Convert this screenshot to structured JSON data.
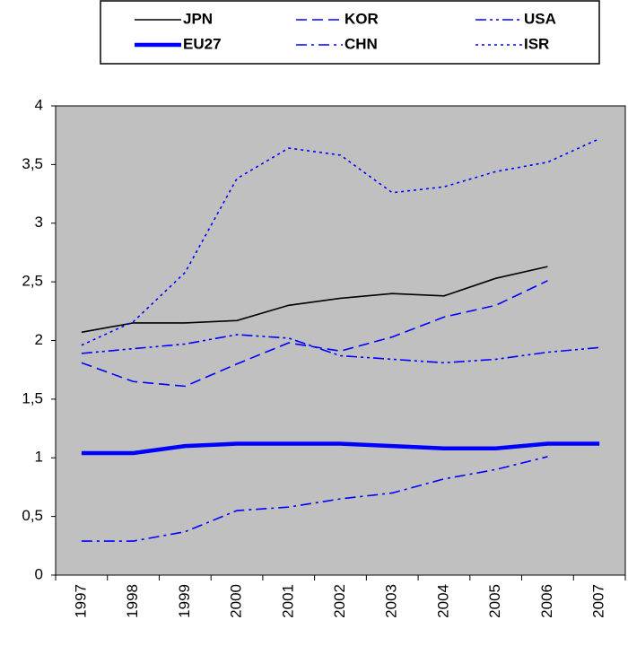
{
  "chart_data": {
    "type": "line",
    "categories": [
      "1997",
      "1998",
      "1999",
      "2000",
      "2001",
      "2002",
      "2003",
      "2004",
      "2005",
      "2006",
      "2007"
    ],
    "series": [
      {
        "name": "JPN",
        "color": "#000000",
        "dash": "solid",
        "thick": false,
        "values": [
          2.07,
          2.15,
          2.15,
          2.17,
          2.3,
          2.36,
          2.4,
          2.38,
          2.53,
          2.63,
          null
        ]
      },
      {
        "name": "KOR",
        "color": "#0000ff",
        "dash": "dashed",
        "thick": false,
        "values": [
          1.81,
          1.65,
          1.61,
          1.8,
          1.98,
          1.91,
          2.03,
          2.2,
          2.3,
          2.51,
          null
        ]
      },
      {
        "name": "USA",
        "color": "#0000ff",
        "dash": "dash-dot-dot",
        "thick": false,
        "values": [
          1.89,
          1.93,
          1.97,
          2.05,
          2.02,
          1.87,
          1.84,
          1.81,
          1.84,
          1.9,
          1.94
        ]
      },
      {
        "name": "EU27",
        "color": "#0000ff",
        "dash": "solid",
        "thick": true,
        "values": [
          1.04,
          1.04,
          1.1,
          1.12,
          1.12,
          1.12,
          1.1,
          1.08,
          1.08,
          1.12,
          1.12
        ]
      },
      {
        "name": "CHN",
        "color": "#0000ff",
        "dash": "dash-dot",
        "thick": false,
        "values": [
          0.29,
          0.29,
          0.37,
          0.55,
          0.58,
          0.65,
          0.7,
          0.82,
          0.9,
          1.01,
          null
        ]
      },
      {
        "name": "ISR",
        "color": "#0000ff",
        "dash": "dotted",
        "thick": false,
        "values": [
          1.96,
          2.16,
          2.58,
          3.38,
          3.64,
          3.58,
          3.26,
          3.31,
          3.44,
          3.52,
          3.72
        ]
      }
    ],
    "ylim": [
      0,
      4
    ],
    "yticks": [
      0,
      {
        "value": 0.5,
        "label": "0,5"
      },
      1,
      {
        "value": 1.5,
        "label": "1,5"
      },
      2,
      {
        "value": 2.5,
        "label": "2,5"
      },
      3,
      {
        "value": 3.5,
        "label": "3,5"
      },
      4
    ],
    "background": "#c0c0c0",
    "grid": false,
    "legend": "top"
  }
}
